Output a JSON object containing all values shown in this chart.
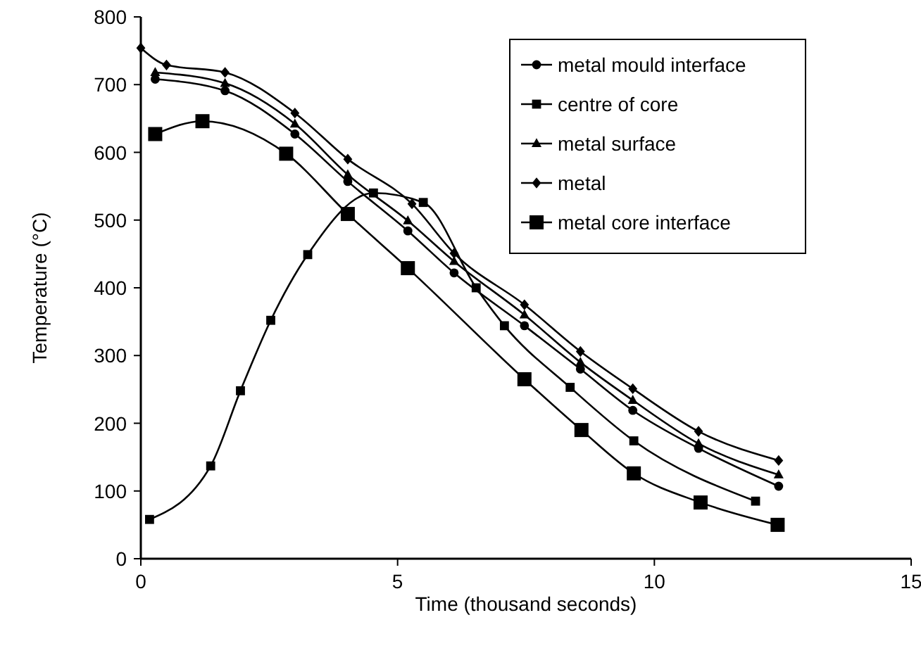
{
  "chart_data": {
    "type": "line",
    "xlabel": "Time (thousand seconds)",
    "ylabel": "Temperature (°C)",
    "xlim": [
      0,
      15
    ],
    "xticks": [
      0,
      5,
      10,
      15
    ],
    "ylim": [
      0,
      800
    ],
    "yticks": [
      0,
      100,
      200,
      300,
      400,
      500,
      600,
      700,
      800
    ],
    "grid": false,
    "legend": "top right",
    "line_style": "solid",
    "series": [
      {
        "name": "metal mould interface",
        "color": "#000000",
        "marker": "circle",
        "x": [
          0.28,
          1.64,
          3.0,
          4.03,
          5.2,
          6.1,
          7.47,
          8.56,
          9.58,
          10.86,
          12.42
        ],
        "values": [
          708,
          691,
          627,
          557,
          484,
          422,
          344,
          280,
          219,
          163,
          107
        ]
      },
      {
        "name": "centre of core",
        "color": "#000000",
        "marker": "square",
        "x": [
          0.17,
          1.36,
          1.94,
          2.53,
          3.25,
          4.53,
          5.5,
          6.1,
          6.53,
          7.08,
          8.36,
          9.6,
          11.97
        ],
        "values": [
          58,
          137,
          248,
          352,
          449,
          540,
          526,
          null,
          400,
          344,
          253,
          174,
          85
        ]
      },
      {
        "name": "metal surface",
        "color": "#000000",
        "marker": "triangle",
        "x": [
          0.28,
          1.64,
          3.0,
          4.03,
          5.2,
          6.1,
          7.47,
          8.56,
          9.58,
          10.86,
          12.42
        ],
        "values": [
          718,
          702,
          642,
          567,
          499,
          439,
          360,
          290,
          234,
          170,
          124
        ]
      },
      {
        "name": "metal",
        "color": "#000000",
        "marker": "diamond",
        "x": [
          0,
          0.5,
          1.64,
          3.0,
          4.03,
          5.28,
          6.1,
          7.47,
          8.56,
          9.58,
          10.86,
          12.42
        ],
        "values": [
          754,
          729,
          718,
          658,
          590,
          524,
          451,
          375,
          306,
          251,
          188,
          145
        ]
      },
      {
        "name": "metal core interface",
        "color": "#000000",
        "marker": "square",
        "x": [
          0.28,
          1.2,
          2.83,
          4.03,
          5.2,
          7.47,
          8.58,
          9.6,
          10.9,
          12.4
        ],
        "values": [
          627,
          646,
          598,
          509,
          429,
          265,
          190,
          126,
          83,
          50
        ]
      }
    ]
  }
}
